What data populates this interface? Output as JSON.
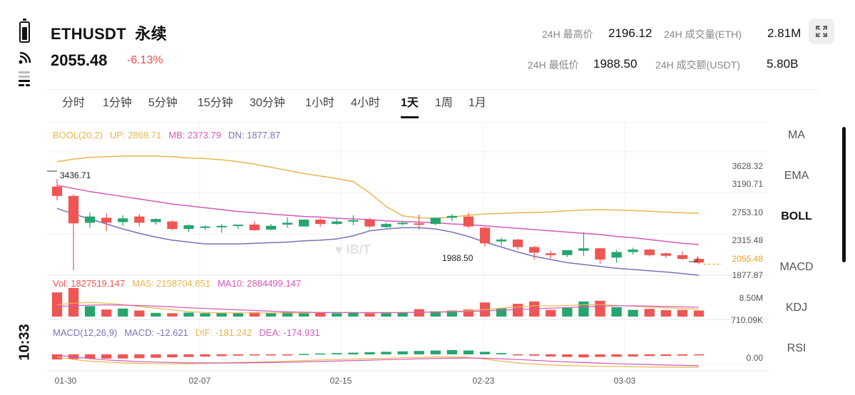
{
  "status": {
    "time": "10:33"
  },
  "header": {
    "symbol": "ETHUSDT",
    "contract": "永续",
    "price": "2055.48",
    "change": "-6.13%",
    "stats": {
      "high_label": "24H 最高价",
      "high": "2196.12",
      "low_label": "24H 最低价",
      "low": "1988.50",
      "vol_label": "24H 成交量(ETH)",
      "vol": "2.81M",
      "turnover_label": "24H 成交额(USDT)",
      "turnover": "5.80B"
    }
  },
  "tabs": [
    {
      "label": "分时"
    },
    {
      "label": "1分钟"
    },
    {
      "label": "5分钟"
    },
    {
      "label": "15分钟"
    },
    {
      "label": "30分钟"
    },
    {
      "label": "1小时"
    },
    {
      "label": "4小时"
    },
    {
      "label": "1天",
      "active": true
    },
    {
      "label": "1周"
    },
    {
      "label": "1月"
    }
  ],
  "side": [
    {
      "label": "MA"
    },
    {
      "label": "EMA"
    },
    {
      "label": "BOLL",
      "active": true
    },
    {
      "label": "MACD"
    },
    {
      "label": "KDJ"
    },
    {
      "label": "RSI"
    }
  ],
  "watermark": "IB/T",
  "boll_legend": {
    "name": "BOOL(20,2)",
    "up": "UP: 2869.71",
    "mb": "MB: 2373.79",
    "dn": "DN: 1877.87"
  },
  "vol_legend": {
    "vol": "Vol: 1827519.147",
    "ma5": "MA5: 2158704.851",
    "ma10": "MA10: 2884499.147"
  },
  "macd_legend": {
    "name": "MACD(12,26,9)",
    "macd": "MACD: -12.621",
    "dif": "DIF: -181.242",
    "dea": "DEA: -174.931"
  },
  "colors": {
    "up": "#26a66e",
    "down": "#ef5552",
    "boll_up": "#e8b64c",
    "boll_mb": "#d459b8",
    "boll_dn": "#7b72b8",
    "price_line": "#f0a020"
  },
  "chart_data": {
    "type": "candlestick",
    "x_labels": [
      "01-30",
      "02-07",
      "02-15",
      "02-23",
      "03-03"
    ],
    "price_axis": [
      "3628.32",
      "3190.71",
      "2753.10",
      "2315.48",
      "2055.48",
      "1877.87"
    ],
    "annotations": {
      "max": "3436.71",
      "min": "1988.50"
    },
    "volume_axis": [
      "8.50M",
      "710.09K"
    ],
    "macd_axis": [
      "0.00"
    ],
    "candles": [
      {
        "o": 3300,
        "h": 3420,
        "c": 3150,
        "l": 3080
      },
      {
        "o": 3150,
        "h": 3180,
        "c": 2710,
        "l": 1960
      },
      {
        "o": 2720,
        "h": 2880,
        "c": 2820,
        "l": 2640
      },
      {
        "o": 2800,
        "h": 2870,
        "c": 2720,
        "l": 2590
      },
      {
        "o": 2730,
        "h": 2840,
        "c": 2790,
        "l": 2670
      },
      {
        "o": 2820,
        "h": 2860,
        "c": 2720,
        "l": 2660
      },
      {
        "o": 2730,
        "h": 2790,
        "c": 2780,
        "l": 2690
      },
      {
        "o": 2740,
        "h": 2760,
        "c": 2620,
        "l": 2600
      },
      {
        "o": 2620,
        "h": 2690,
        "c": 2680,
        "l": 2570
      },
      {
        "o": 2640,
        "h": 2680,
        "c": 2660,
        "l": 2600
      },
      {
        "o": 2660,
        "h": 2700,
        "c": 2670,
        "l": 2560
      },
      {
        "o": 2670,
        "h": 2690,
        "c": 2690,
        "l": 2620
      },
      {
        "o": 2690,
        "h": 2740,
        "c": 2600,
        "l": 2590
      },
      {
        "o": 2610,
        "h": 2700,
        "c": 2670,
        "l": 2600
      },
      {
        "o": 2690,
        "h": 2810,
        "c": 2720,
        "l": 2640
      },
      {
        "o": 2660,
        "h": 2770,
        "c": 2770,
        "l": 2660
      },
      {
        "o": 2770,
        "h": 2790,
        "c": 2700,
        "l": 2660
      },
      {
        "o": 2700,
        "h": 2780,
        "c": 2740,
        "l": 2690
      },
      {
        "o": 2750,
        "h": 2840,
        "c": 2760,
        "l": 2680
      },
      {
        "o": 2770,
        "h": 2800,
        "c": 2660,
        "l": 2630
      },
      {
        "o": 2650,
        "h": 2720,
        "c": 2700,
        "l": 2640
      },
      {
        "o": 2700,
        "h": 2740,
        "c": 2720,
        "l": 2680
      },
      {
        "o": 2710,
        "h": 2850,
        "c": 2700,
        "l": 2610
      },
      {
        "o": 2700,
        "h": 2810,
        "c": 2800,
        "l": 2680
      },
      {
        "o": 2800,
        "h": 2860,
        "c": 2830,
        "l": 2750
      },
      {
        "o": 2820,
        "h": 2880,
        "c": 2660,
        "l": 2630
      },
      {
        "o": 2640,
        "h": 2650,
        "c": 2390,
        "l": 2340
      },
      {
        "o": 2420,
        "h": 2480,
        "c": 2450,
        "l": 2350
      },
      {
        "o": 2450,
        "h": 2460,
        "c": 2330,
        "l": 2290
      },
      {
        "o": 2330,
        "h": 2350,
        "c": 2240,
        "l": 2130
      },
      {
        "o": 2230,
        "h": 2270,
        "c": 2200,
        "l": 2150
      },
      {
        "o": 2200,
        "h": 2280,
        "c": 2280,
        "l": 2170
      },
      {
        "o": 2270,
        "h": 2570,
        "c": 2310,
        "l": 2190
      },
      {
        "o": 2310,
        "h": 2320,
        "c": 2130,
        "l": 2060
      },
      {
        "o": 2160,
        "h": 2280,
        "c": 2250,
        "l": 2080
      },
      {
        "o": 2250,
        "h": 2320,
        "c": 2290,
        "l": 2210
      },
      {
        "o": 2290,
        "h": 2300,
        "c": 2200,
        "l": 2180
      },
      {
        "o": 2230,
        "h": 2240,
        "c": 2190,
        "l": 2150
      },
      {
        "o": 2200,
        "h": 2260,
        "c": 2140,
        "l": 2120
      },
      {
        "o": 2140,
        "h": 2160,
        "c": 2080,
        "l": 2050
      }
    ],
    "volume": [
      7.2,
      8.5,
      3.1,
      2.1,
      2.4,
      1.8,
      1.1,
      1.0,
      1.2,
      1.0,
      1.1,
      1.0,
      1.3,
      1.0,
      1.4,
      1.0,
      1.1,
      1.0,
      1.2,
      1.0,
      1.3,
      1.1,
      2.2,
      1.6,
      1.8,
      2.1,
      4.2,
      2.5,
      3.8,
      4.5,
      2.0,
      2.6,
      4.5,
      4.7,
      2.8,
      2.0,
      2.3,
      1.9,
      2.0,
      1.8
    ],
    "vol_ma5": [
      3.5,
      4.0,
      4.2,
      4.0,
      3.6,
      3.0,
      2.5,
      2.0,
      1.5,
      1.2,
      1.1,
      1.1,
      1.1,
      1.1,
      1.1,
      1.1,
      1.2,
      1.2,
      1.2,
      1.1,
      1.1,
      1.2,
      1.3,
      1.4,
      1.5,
      1.7,
      2.1,
      2.5,
      2.8,
      3.2,
      3.2,
      3.3,
      3.5,
      3.6,
      3.3,
      3.1,
      2.8,
      2.6,
      2.4,
      2.2
    ],
    "vol_ma10": [
      3.0,
      3.2,
      3.4,
      3.5,
      3.4,
      3.3,
      3.1,
      2.9,
      2.6,
      2.4,
      2.2,
      2.0,
      1.8,
      1.6,
      1.4,
      1.3,
      1.2,
      1.2,
      1.2,
      1.2,
      1.2,
      1.2,
      1.3,
      1.3,
      1.4,
      1.5,
      1.7,
      1.9,
      2.1,
      2.3,
      2.5,
      2.7,
      2.9,
      3.1,
      3.2,
      3.2,
      3.1,
      3.0,
      2.9,
      2.8
    ],
    "macd_hist": [
      -0.6,
      -0.55,
      -0.5,
      -0.5,
      -0.48,
      -0.45,
      -0.4,
      -0.35,
      -0.3,
      -0.25,
      -0.2,
      -0.15,
      -0.12,
      -0.1,
      -0.05,
      0.05,
      0.1,
      0.15,
      0.2,
      0.25,
      0.3,
      0.35,
      0.4,
      0.45,
      0.5,
      0.45,
      0.3,
      0.15,
      -0.05,
      -0.15,
      -0.25,
      -0.3,
      -0.35,
      -0.3,
      -0.28,
      -0.25,
      -0.2,
      -0.18,
      -0.15,
      -0.12
    ],
    "dif": [
      -0.3,
      -0.6,
      -0.8,
      -0.9,
      -1.0,
      -1.05,
      -1.1,
      -1.1,
      -1.1,
      -1.05,
      -1.0,
      -0.95,
      -0.9,
      -0.85,
      -0.8,
      -0.72,
      -0.65,
      -0.6,
      -0.55,
      -0.5,
      -0.45,
      -0.4,
      -0.35,
      -0.3,
      -0.3,
      -0.35,
      -0.55,
      -0.8,
      -1.0,
      -1.15,
      -1.25,
      -1.3,
      -1.35,
      -1.4,
      -1.42,
      -1.45,
      -1.48,
      -1.5,
      -1.5,
      -1.5
    ],
    "dea": [
      -0.1,
      -0.3,
      -0.5,
      -0.65,
      -0.75,
      -0.85,
      -0.9,
      -0.95,
      -1.0,
      -1.0,
      -1.0,
      -1.0,
      -0.98,
      -0.95,
      -0.92,
      -0.88,
      -0.82,
      -0.78,
      -0.73,
      -0.68,
      -0.62,
      -0.58,
      -0.52,
      -0.48,
      -0.45,
      -0.43,
      -0.45,
      -0.52,
      -0.6,
      -0.7,
      -0.8,
      -0.88,
      -0.95,
      -1.02,
      -1.1,
      -1.15,
      -1.2,
      -1.25,
      -1.28,
      -1.32
    ],
    "boll_up": [
      3700,
      3740,
      3770,
      3780,
      3790,
      3790,
      3790,
      3780,
      3760,
      3750,
      3730,
      3700,
      3660,
      3610,
      3560,
      3510,
      3470,
      3430,
      3380,
      3200,
      2980,
      2830,
      2800,
      2790,
      2810,
      2840,
      2860,
      2870,
      2880,
      2885,
      2895,
      2910,
      2925,
      2930,
      2925,
      2915,
      2905,
      2890,
      2880,
      2870
    ],
    "boll_mb": [
      3320,
      3270,
      3220,
      3180,
      3140,
      3100,
      3060,
      3020,
      2990,
      2960,
      2930,
      2900,
      2880,
      2860,
      2840,
      2820,
      2810,
      2790,
      2780,
      2770,
      2750,
      2740,
      2730,
      2720,
      2700,
      2690,
      2670,
      2650,
      2630,
      2610,
      2590,
      2570,
      2550,
      2530,
      2500,
      2480,
      2450,
      2420,
      2390,
      2370
    ],
    "boll_dn": [
      2950,
      2860,
      2780,
      2700,
      2620,
      2550,
      2490,
      2440,
      2410,
      2380,
      2380,
      2380,
      2390,
      2400,
      2410,
      2430,
      2440,
      2460,
      2510,
      2590,
      2620,
      2640,
      2640,
      2620,
      2570,
      2500,
      2410,
      2330,
      2250,
      2180,
      2130,
      2080,
      2050,
      2020,
      1990,
      1970,
      1950,
      1930,
      1905,
      1878
    ]
  }
}
